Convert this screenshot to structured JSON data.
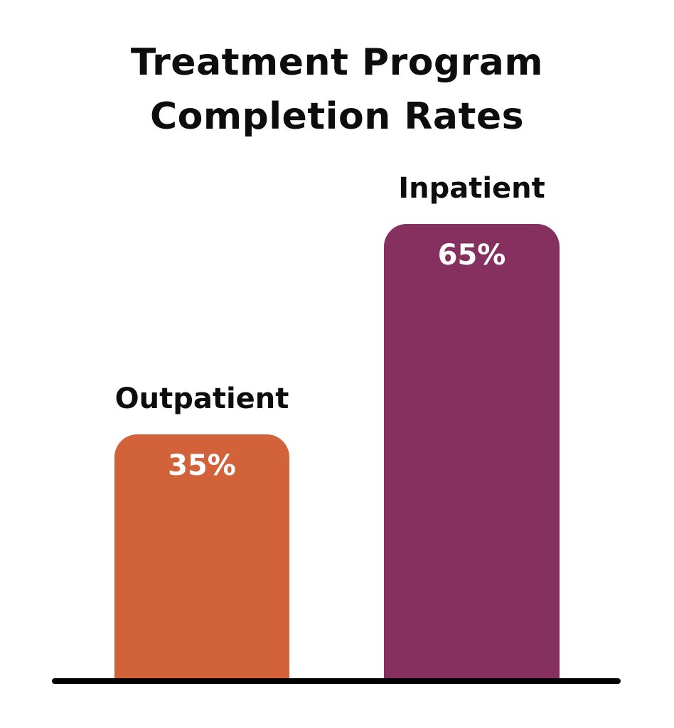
{
  "chart": {
    "title_line1": "Treatment Program",
    "title_line2": "Completion Rates",
    "bars": [
      {
        "id": "outpatient",
        "label": "Outpatient",
        "value": 35,
        "value_label": "35%",
        "color": "#D2623A"
      },
      {
        "id": "inpatient",
        "label": "Inpatient",
        "value": 65,
        "value_label": "65%",
        "color": "#85305E"
      }
    ],
    "colors": {
      "background": "#FFFFFF",
      "title_text": "#0D0D0D",
      "label_text": "#0D0D0D",
      "value_text": "#FFFFFF",
      "axis_line": "#000000",
      "outpatient_bar": "#D2623A",
      "inpatient_bar": "#85305E"
    }
  },
  "chart_data": {
    "type": "bar",
    "title": "Treatment Program Completion Rates",
    "categories": [
      "Outpatient",
      "Inpatient"
    ],
    "values": [
      35,
      65
    ],
    "data_labels": [
      "35%",
      "65%"
    ],
    "bar_colors": [
      "#D2623A",
      "#85305E"
    ],
    "xlabel": "",
    "ylabel": "",
    "ylim": [
      0,
      100
    ],
    "grid": false,
    "legend": "none",
    "label_position": "above-bar",
    "value_position": "inside-bar-top"
  }
}
